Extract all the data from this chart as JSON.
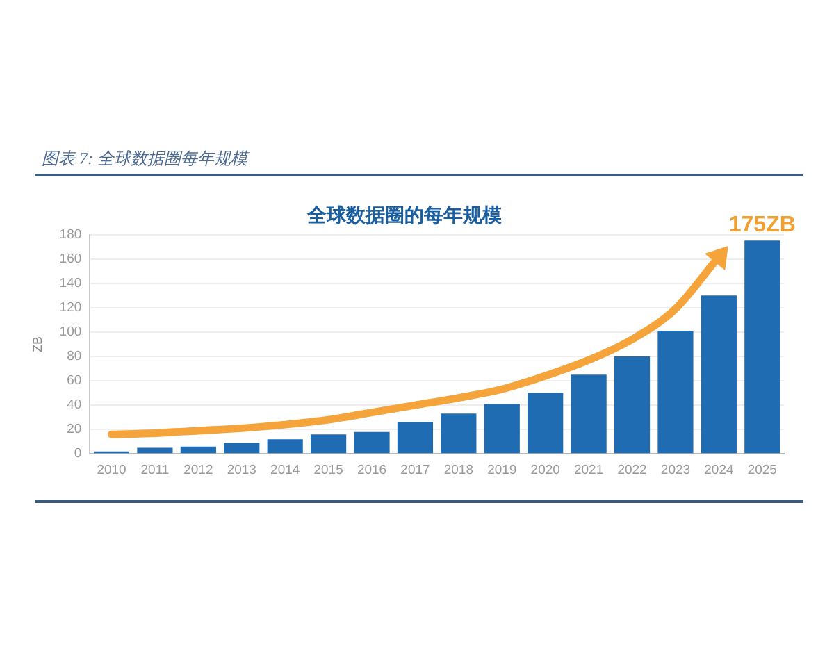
{
  "chart_data": {
    "type": "bar",
    "title": "全球数据圈的每年规模",
    "ylabel": "ZB",
    "marker": "none",
    "categories": [
      "2010",
      "2011",
      "2012",
      "2013",
      "2014",
      "2015",
      "2016",
      "2017",
      "2018",
      "2019",
      "2020",
      "2021",
      "2022",
      "2023",
      "2024",
      "2025"
    ],
    "series": [
      {
        "color": "#1f6cb3",
        "values": [
          2,
          5,
          6,
          9,
          12,
          16,
          18,
          26,
          33,
          41,
          50,
          65,
          80,
          101,
          130,
          175
        ]
      },
      {
        "type": "line",
        "color": "#f4a43a",
        "values": [
          16,
          17,
          19,
          21,
          24,
          28,
          34,
          40,
          46,
          53,
          64,
          77,
          94,
          119,
          162,
          null
        ]
      }
    ],
    "ylim": [
      0,
      180
    ],
    "yticks": [
      0,
      20,
      40,
      60,
      80,
      100,
      120,
      140,
      160,
      180
    ],
    "grid": "y",
    "annotations": [
      "图表 7: 全球数据圈每年规模",
      {
        "text": "175ZB",
        "x": "2025",
        "y": 175
      }
    ]
  }
}
